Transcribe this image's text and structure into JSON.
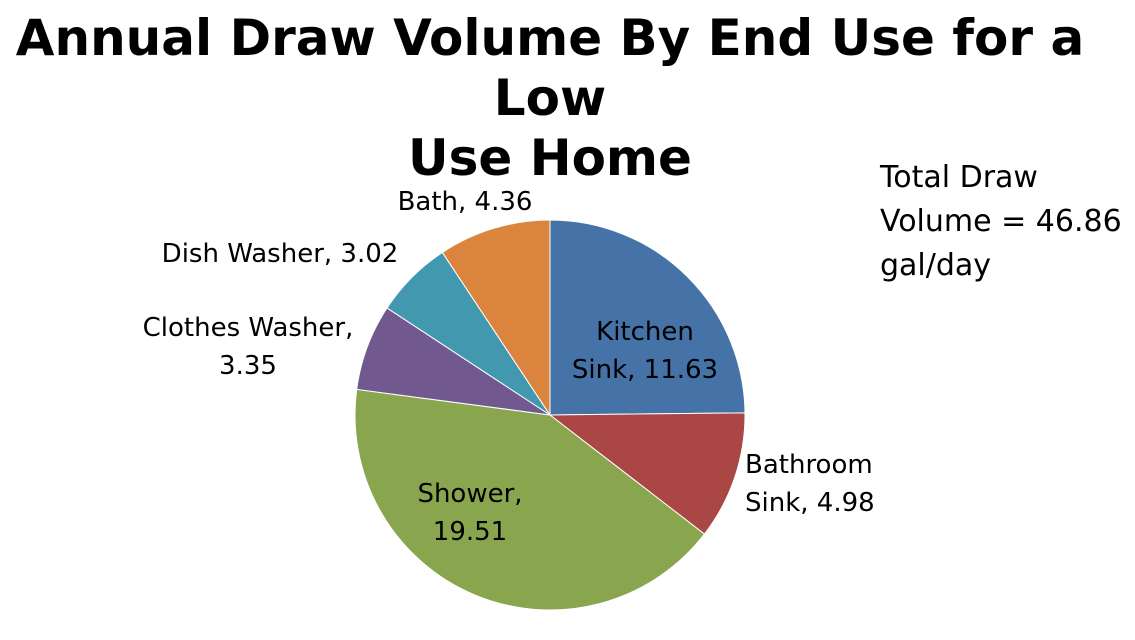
{
  "title_lines": [
    "Annual Draw Volume By End Use for a Low",
    "Use Home"
  ],
  "note_lines": [
    "Total Draw",
    "Volume = 46.86",
    "gal/day"
  ],
  "chart_data": {
    "type": "pie",
    "title": "Annual Draw Volume By End Use for a Low Use Home",
    "legend": "none",
    "slices": [
      {
        "name": "Kitchen Sink",
        "value": 11.63,
        "color": "#4572A7",
        "label_lines": [
          "Kitchen",
          "Sink, 11.63"
        ],
        "label_inside": true
      },
      {
        "name": "Bathroom Sink",
        "value": 4.98,
        "color": "#AA4643",
        "label_lines": [
          "Bathroom",
          "Sink, 4.98"
        ],
        "label_inside": false
      },
      {
        "name": "Shower",
        "value": 19.51,
        "color": "#89A54E",
        "label_lines": [
          "Shower,",
          "19.51"
        ],
        "label_inside": true
      },
      {
        "name": "Clothes Washer",
        "value": 3.35,
        "color": "#71588F",
        "label_lines": [
          "Clothes Washer,",
          "3.35"
        ],
        "label_inside": false
      },
      {
        "name": "Dish Washer",
        "value": 3.02,
        "color": "#4198AF",
        "label_lines": [
          "Dish Washer, 3.02"
        ],
        "label_inside": false
      },
      {
        "name": "Bath",
        "value": 4.36,
        "color": "#DB843D",
        "label_lines": [
          "Bath, 4.36"
        ],
        "label_inside": false
      }
    ]
  }
}
